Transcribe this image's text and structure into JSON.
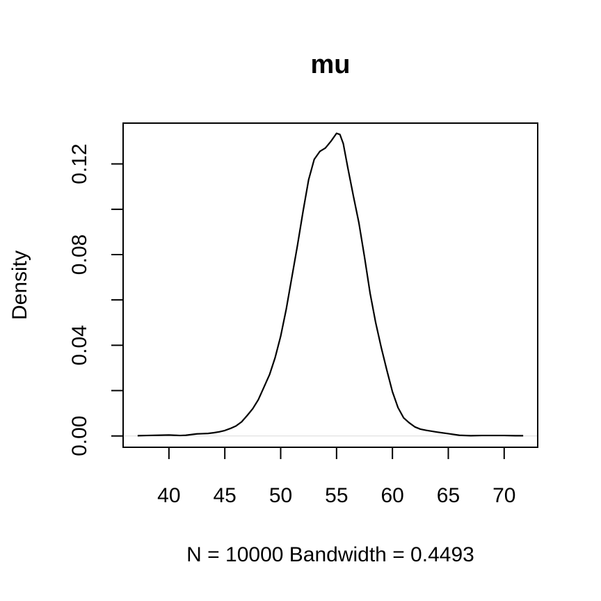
{
  "chart_data": {
    "type": "line",
    "title": "mu",
    "xlabel": "N = 10000   Bandwidth = 0.4493",
    "ylabel": "Density",
    "xlim": [
      35.9,
      73.0
    ],
    "ylim": [
      -0.005,
      0.138
    ],
    "x_ticks": [
      40,
      45,
      50,
      55,
      60,
      65,
      70
    ],
    "x_tick_labels": [
      "40",
      "45",
      "50",
      "55",
      "60",
      "65",
      "70"
    ],
    "y_ticks": [
      0.0,
      0.02,
      0.04,
      0.06,
      0.08,
      0.1,
      0.12
    ],
    "y_tick_labels": [
      "0.00",
      "",
      "0.04",
      "",
      "0.08",
      "",
      "0.12"
    ],
    "grid": false,
    "baseline": 0,
    "series": [
      {
        "x": [
          37.2,
          38.0,
          39.0,
          40.0,
          40.5,
          41.0,
          41.5,
          42.0,
          42.5,
          43.0,
          43.5,
          44.0,
          44.5,
          45.0,
          45.5,
          46.0,
          46.5,
          47.0,
          47.5,
          48.0,
          48.5,
          49.0,
          49.5,
          50.0,
          50.5,
          51.0,
          51.5,
          52.0,
          52.5,
          53.0,
          53.5,
          54.0,
          54.5,
          55.0,
          55.3,
          55.6,
          56.0,
          56.5,
          57.0,
          57.5,
          58.0,
          58.5,
          59.0,
          59.5,
          60.0,
          60.5,
          61.0,
          61.5,
          62.0,
          62.5,
          63.0,
          64.0,
          65.0,
          66.0,
          67.0,
          68.0,
          69.0,
          70.0,
          71.0,
          71.7
        ],
        "y": [
          0.0001,
          0.0002,
          0.0003,
          0.0004,
          0.0003,
          0.0002,
          0.0003,
          0.0006,
          0.0009,
          0.001,
          0.0011,
          0.0014,
          0.0018,
          0.0024,
          0.0033,
          0.0044,
          0.0062,
          0.009,
          0.012,
          0.016,
          0.0215,
          0.027,
          0.0345,
          0.044,
          0.056,
          0.07,
          0.084,
          0.099,
          0.113,
          0.122,
          0.1255,
          0.127,
          0.13,
          0.1335,
          0.133,
          0.129,
          0.1185,
          0.106,
          0.094,
          0.079,
          0.063,
          0.05,
          0.039,
          0.029,
          0.0195,
          0.0125,
          0.008,
          0.0058,
          0.004,
          0.003,
          0.0025,
          0.0017,
          0.001,
          0.0003,
          0.0001,
          0.0002,
          0.0002,
          0.0002,
          0.0001,
          0.0001
        ]
      }
    ]
  }
}
